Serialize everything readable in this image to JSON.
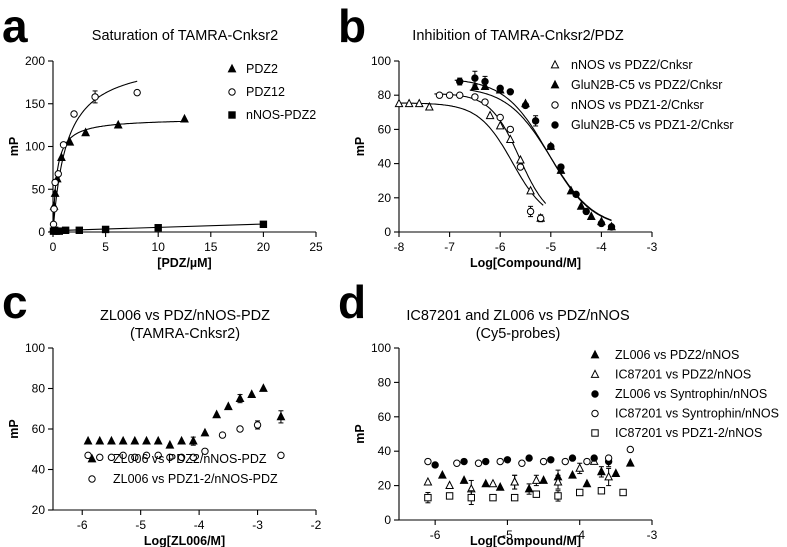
{
  "chart_data": [
    {
      "panel": "a",
      "type": "scatter",
      "title": "Saturation of TAMRA-Cnksr2",
      "xlabel": "[PDZ/µM]",
      "ylabel": "mP",
      "xlim": [
        0,
        25
      ],
      "ylim": [
        0,
        200
      ],
      "xticks": [
        0,
        5,
        10,
        15,
        20,
        25
      ],
      "yticks": [
        0,
        50,
        100,
        150,
        200
      ],
      "legend_position": "top-right",
      "series": [
        {
          "name": "PDZ2",
          "marker": "triangle",
          "x": [
            0.05,
            0.1,
            0.2,
            0.4,
            0.8,
            1.6,
            3.1,
            6.2,
            12.5
          ],
          "y": [
            4,
            30,
            45,
            62,
            87,
            105,
            116,
            125,
            132
          ],
          "curve": {
            "bmax": 133,
            "kd": 0.35,
            "xmax": 12.5
          }
        },
        {
          "name": "PDZ12",
          "marker": "open-circle",
          "x": [
            0.05,
            0.1,
            0.2,
            0.5,
            1.0,
            2.0,
            4.0,
            8.0
          ],
          "y": [
            9,
            27,
            58,
            68,
            102,
            138,
            158,
            163
          ],
          "err": [
            0,
            0,
            0,
            0,
            0,
            0,
            7,
            0
          ],
          "curve": {
            "bmax": 205,
            "kd": 1.3,
            "xmax": 8.0
          }
        },
        {
          "name": "nNOS-PDZ2",
          "marker": "square",
          "x": [
            0.05,
            0.16,
            0.3,
            0.6,
            1.2,
            2.5,
            5.0,
            10.0,
            20.0
          ],
          "y": [
            1,
            2,
            1,
            1,
            2,
            2,
            3,
            5,
            9
          ],
          "curve": {
            "slope": 0.39,
            "intercept": 1.5,
            "xmin": 0,
            "xmax": 20.2
          }
        }
      ]
    },
    {
      "panel": "b",
      "type": "scatter",
      "title": "Inhibition of TAMRA-Cnksr2/PDZ",
      "xlabel": "Log[Compound/M]",
      "ylabel": "mP",
      "xlim": [
        -8,
        -3
      ],
      "ylim": [
        0,
        100
      ],
      "xticks": [
        -8,
        -7,
        -6,
        -5,
        -4,
        -3
      ],
      "yticks": [
        0,
        20,
        40,
        60,
        80,
        100
      ],
      "legend_position": "top-right",
      "series": [
        {
          "name": "nNOS vs PDZ2/Cnksr",
          "marker": "open-triangle",
          "x": [
            -8.0,
            -7.8,
            -7.6,
            -7.4,
            -6.2,
            -6.0,
            -5.8,
            -5.6,
            -5.4,
            -5.2
          ],
          "y": [
            75,
            75,
            75,
            73,
            68,
            62,
            54,
            42,
            24,
            8
          ],
          "curve": {
            "top": 75.5,
            "bottom": 6,
            "logic50": -5.76,
            "hill": 1.3,
            "xmin": -8.0,
            "xmax": -5.15
          }
        },
        {
          "name": "GluN2B-C5 vs PDZ2/Cnksr",
          "marker": "triangle",
          "x": [
            -6.5,
            -6.3,
            -6.0,
            -5.5,
            -5.0,
            -4.8,
            -4.6,
            -4.4,
            -4.2,
            -4.0,
            -3.8
          ],
          "y": [
            85,
            85,
            83,
            75,
            50,
            36,
            24,
            15,
            9,
            6,
            3
          ],
          "curve": {
            "top": 85,
            "bottom": 2,
            "logic50": -5.0,
            "hill": 1.0,
            "xmin": -6.6,
            "xmax": -3.8
          }
        },
        {
          "name": "nNOS vs PDZ1-2/Cnksr",
          "marker": "open-circle",
          "x": [
            -7.2,
            -7.0,
            -6.8,
            -6.5,
            -6.3,
            -6.0,
            -5.8,
            -5.6,
            -5.4,
            -5.2
          ],
          "y": [
            80,
            80,
            80,
            79,
            76,
            67,
            60,
            38,
            12,
            8
          ],
          "err": [
            0,
            0,
            0,
            0,
            0,
            0,
            0,
            0,
            3,
            2
          ],
          "curve": {
            "top": 81,
            "bottom": 6,
            "logic50": -5.62,
            "hill": 1.5,
            "xmin": -7.3,
            "xmax": -5.1
          }
        },
        {
          "name": "GluN2B-C5 vs PDZ1-2/Cnksr",
          "marker": "circle",
          "x": [
            -6.8,
            -6.5,
            -6.3,
            -6.0,
            -5.8,
            -5.5,
            -5.3,
            -5.0,
            -4.8,
            -4.5,
            -4.3,
            -4.0,
            -3.8
          ],
          "y": [
            88,
            90,
            88,
            84,
            82,
            74,
            65,
            50,
            38,
            22,
            12,
            5,
            3
          ],
          "err": [
            2,
            4,
            3,
            0,
            0,
            0,
            3,
            0,
            0,
            0,
            0,
            0,
            0
          ],
          "curve": {
            "top": 90,
            "bottom": 2,
            "logic50": -5.05,
            "hill": 1.0,
            "xmin": -6.9,
            "xmax": -3.8
          }
        }
      ]
    },
    {
      "panel": "c",
      "type": "scatter",
      "title": "ZL006 vs PDZ/nNOS-PDZ",
      "subtitle": "(TAMRA-Cnksr2)",
      "xlabel": "Log[ZL006/M]",
      "ylabel": "mP",
      "xlim": [
        -6.5,
        -2
      ],
      "ylim": [
        20,
        100
      ],
      "xticks": [
        -6,
        -5,
        -4,
        -3,
        -2
      ],
      "yticks": [
        20,
        40,
        60,
        80,
        100
      ],
      "legend_position": "bottom-left",
      "series": [
        {
          "name": "ZL006 vs PDZ2/nNOS-PDZ",
          "marker": "triangle",
          "x": [
            -5.9,
            -5.7,
            -5.5,
            -5.3,
            -5.1,
            -4.9,
            -4.7,
            -4.5,
            -4.3,
            -4.1,
            -3.9,
            -3.7,
            -3.5,
            -3.3,
            -3.1,
            -2.9,
            -2.6
          ],
          "y": [
            54,
            54,
            54,
            54,
            54,
            54,
            54,
            52,
            54,
            54,
            58,
            67,
            71,
            75,
            77,
            80,
            66
          ],
          "err": [
            0,
            0,
            0,
            0,
            0,
            0,
            0,
            0,
            0,
            2,
            0,
            0,
            0,
            2,
            0,
            0,
            3
          ]
        },
        {
          "name": "ZL006 vs PDZ1-2/nNOS-PDZ",
          "marker": "open-circle",
          "x": [
            -5.9,
            -5.7,
            -5.5,
            -5.3,
            -5.1,
            -4.9,
            -4.7,
            -4.5,
            -4.3,
            -4.1,
            -3.9,
            -3.6,
            -3.3,
            -3.0,
            -2.6
          ],
          "y": [
            47,
            46,
            46,
            47,
            46,
            47,
            47,
            46,
            46,
            46,
            49,
            57,
            60,
            62,
            47
          ],
          "err": [
            0,
            0,
            0,
            0,
            0,
            0,
            0,
            0,
            0,
            0,
            0,
            0,
            0,
            2,
            0
          ]
        }
      ]
    },
    {
      "panel": "d",
      "type": "scatter",
      "title": "IC87201 and ZL006 vs PDZ/nNOS",
      "subtitle": "(Cy5-probes)",
      "xlabel": "Log[Compound/M]",
      "ylabel": "mP",
      "xlim": [
        -6.5,
        -3
      ],
      "ylim": [
        0,
        100
      ],
      "xticks": [
        -6,
        -5,
        -4,
        -3
      ],
      "yticks": [
        0,
        20,
        40,
        60,
        80,
        100
      ],
      "legend_position": "top-right",
      "series": [
        {
          "name": "ZL006 vs PDZ2/nNOS",
          "marker": "triangle",
          "x": [
            -5.9,
            -5.6,
            -5.3,
            -5.1,
            -4.9,
            -4.7,
            -4.5,
            -4.3,
            -4.1,
            -3.9,
            -3.7,
            -3.5,
            -3.3
          ],
          "y": [
            26,
            23,
            21,
            19,
            22,
            18,
            23,
            25,
            26,
            21,
            28,
            27,
            33
          ],
          "err": [
            0,
            0,
            0,
            0,
            4,
            3,
            0,
            4,
            0,
            0,
            3,
            0,
            0
          ]
        },
        {
          "name": "IC87201 vs PDZ2/nNOS",
          "marker": "open-triangle",
          "x": [
            -6.1,
            -5.8,
            -5.5,
            -5.2,
            -4.9,
            -4.6,
            -4.3,
            -4.0,
            -3.8,
            -3.6
          ],
          "y": [
            22,
            20,
            18,
            21,
            22,
            23,
            22,
            30,
            34,
            25
          ],
          "err": [
            0,
            0,
            5,
            0,
            4,
            3,
            4,
            3,
            0,
            5
          ]
        },
        {
          "name": "ZL006 vs Syntrophin/nNOS",
          "marker": "circle",
          "x": [
            -6.0,
            -5.6,
            -5.3,
            -5.0,
            -4.7,
            -4.4,
            -4.1,
            -3.8,
            -3.6
          ],
          "y": [
            32,
            34,
            34,
            35,
            36,
            35,
            36,
            36,
            34
          ],
          "err": [
            0,
            0,
            0,
            0,
            0,
            0,
            0,
            0,
            3
          ]
        },
        {
          "name": "IC87201 vs Syntrophin/nNOS",
          "marker": "open-circle",
          "x": [
            -6.1,
            -5.7,
            -5.4,
            -5.1,
            -4.8,
            -4.5,
            -4.2,
            -3.9,
            -3.6,
            -3.3
          ],
          "y": [
            34,
            33,
            33,
            34,
            33,
            34,
            34,
            34,
            36,
            41
          ]
        },
        {
          "name": "IC87201 vs PDZ1-2/nNOS",
          "marker": "open-square",
          "x": [
            -6.1,
            -5.8,
            -5.5,
            -5.2,
            -4.9,
            -4.6,
            -4.3,
            -4.0,
            -3.7,
            -3.4
          ],
          "y": [
            13,
            14,
            13,
            13,
            13,
            15,
            14,
            16,
            17,
            16
          ],
          "err": [
            3,
            0,
            4,
            0,
            0,
            0,
            3,
            0,
            0,
            0
          ]
        }
      ]
    }
  ]
}
